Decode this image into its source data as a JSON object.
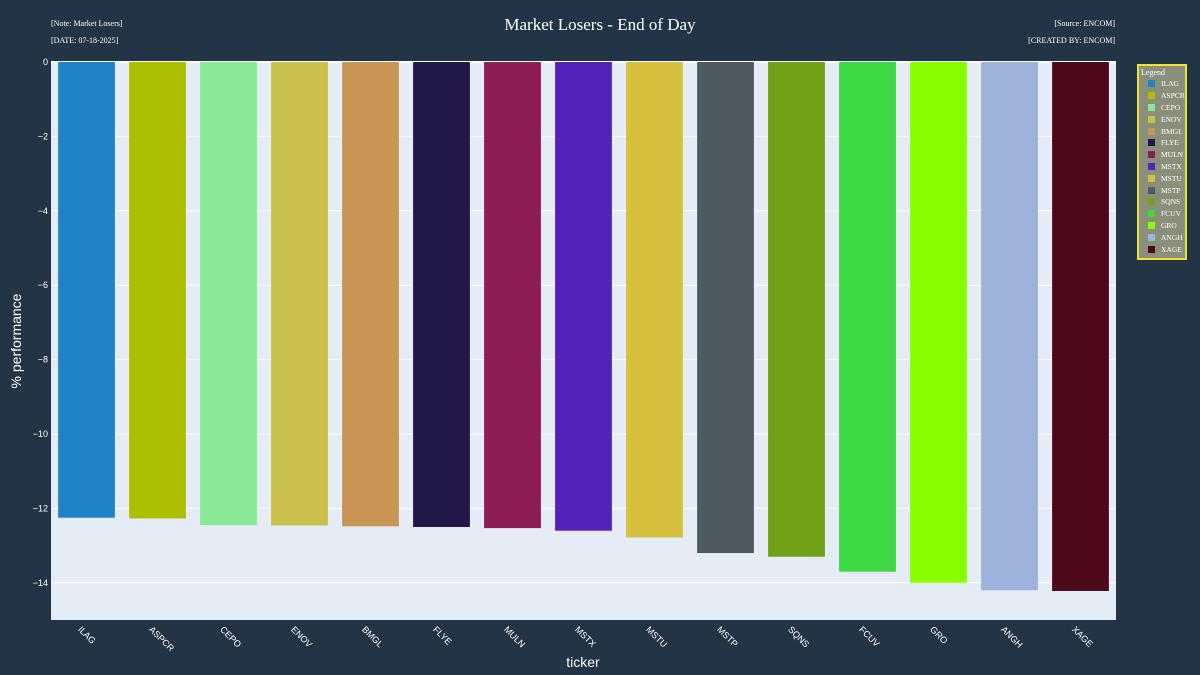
{
  "annotations": {
    "note": "[Note: Market Losers]",
    "date": "[DATE: 07-18-2025]",
    "source": "[Source: ENCOM]",
    "created_by": "[CREATED BY: ENCOM]"
  },
  "chart_data": {
    "type": "bar",
    "title": "Market Losers - End of Day",
    "xlabel": "ticker",
    "ylabel": "% performance",
    "ylim": [
      -15,
      0
    ],
    "yticks": [
      0,
      -2,
      -4,
      -6,
      -8,
      -10,
      -12,
      -14
    ],
    "grid": true,
    "legend_title": "Legend",
    "legend_placement": "right",
    "categories": [
      "ILAG",
      "ASPCR",
      "CEPO",
      "ENOV",
      "BMGL",
      "FLYE",
      "MULN",
      "MSTX",
      "MSTU",
      "MSTP",
      "SQNS",
      "FCUV",
      "GRO",
      "ANGH",
      "XAGE"
    ],
    "values": [
      -12.25,
      -12.27,
      -12.45,
      -12.46,
      -12.48,
      -12.5,
      -12.53,
      -12.6,
      -12.78,
      -13.2,
      -13.3,
      -13.7,
      -14.0,
      -14.2,
      -14.22
    ],
    "colors": [
      "#1f83c8",
      "#adbd00",
      "#89e896",
      "#c9c14b",
      "#c99555",
      "#22174a",
      "#8e1d55",
      "#5322b8",
      "#d6c03e",
      "#4d5a61",
      "#70a116",
      "#3dd942",
      "#87ff00",
      "#9eb3dc",
      "#4e0919"
    ]
  }
}
